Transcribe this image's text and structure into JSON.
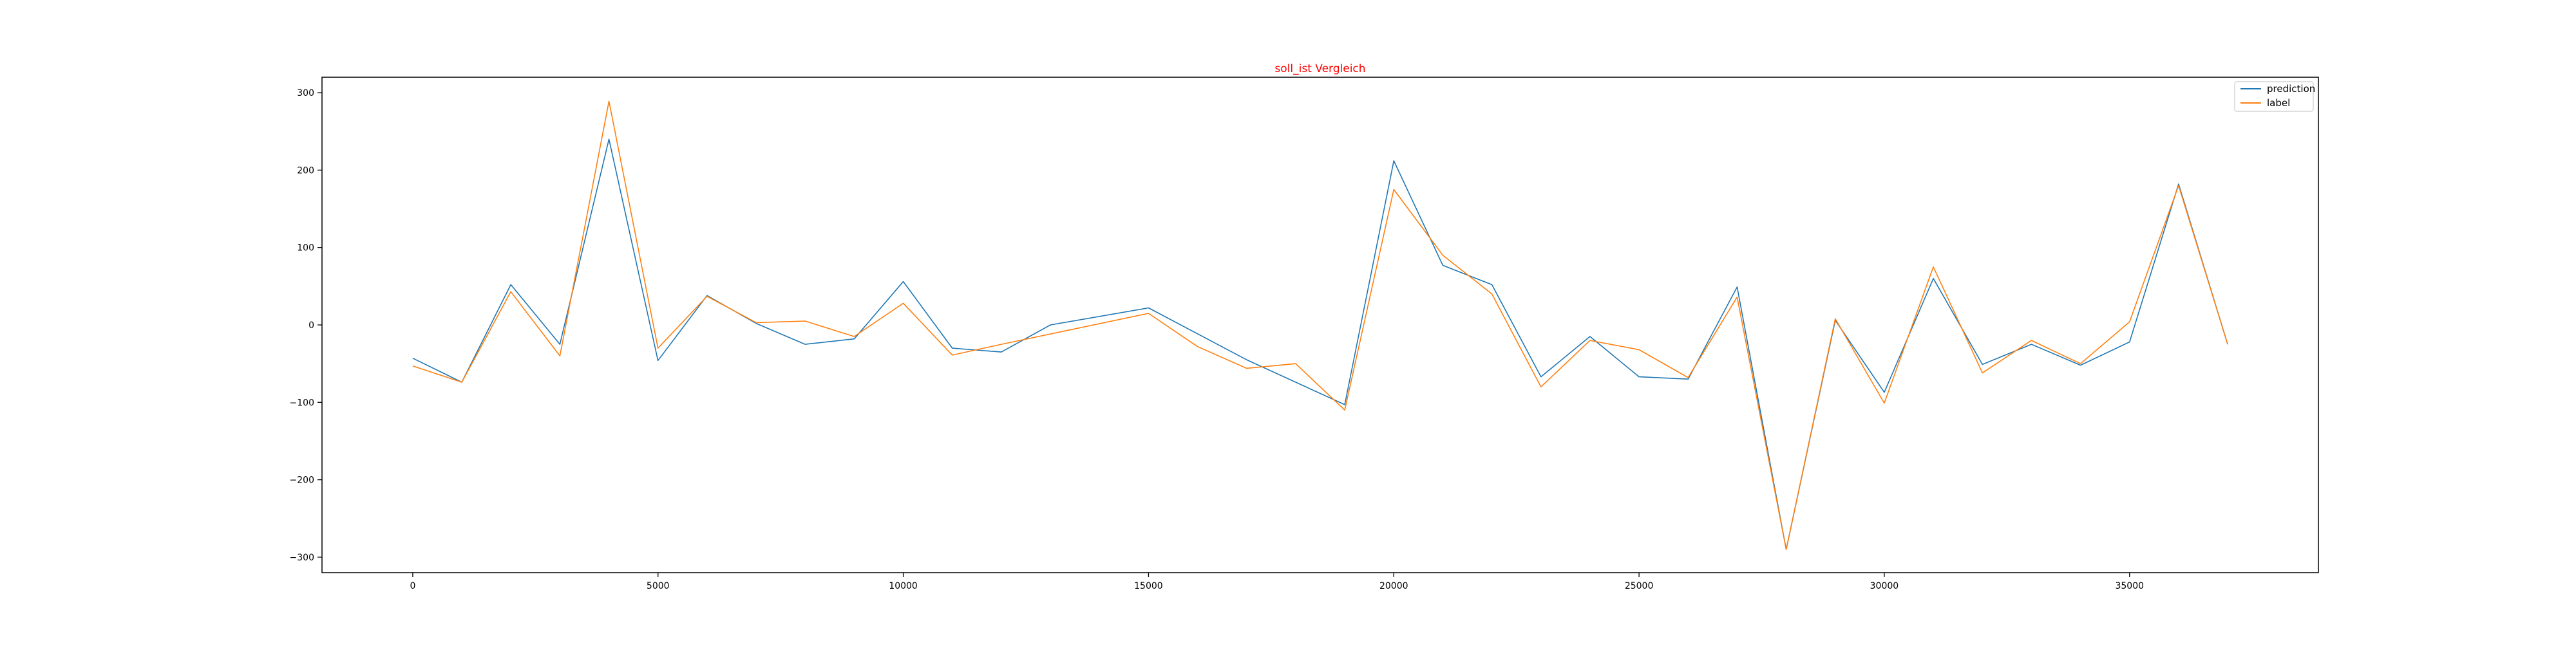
{
  "chart_data": {
    "type": "line",
    "title": "soll_ist Vergleich",
    "title_color": "#ff0000",
    "xlabel": "",
    "ylabel": "",
    "xlim": [
      -1850,
      38850
    ],
    "ylim": [
      -320,
      320
    ],
    "x_ticks": [
      0,
      5000,
      10000,
      15000,
      20000,
      25000,
      30000,
      35000
    ],
    "y_ticks": [
      -300,
      -200,
      -100,
      0,
      100,
      200,
      300
    ],
    "grid": false,
    "legend_position": "top-right",
    "series": [
      {
        "name": "prediction",
        "color": "#1f77b4",
        "points": [
          [
            0,
            -43
          ],
          [
            1000,
            -74
          ],
          [
            2000,
            52
          ],
          [
            3000,
            -25
          ],
          [
            4000,
            240
          ],
          [
            5000,
            -46
          ],
          [
            6000,
            38
          ],
          [
            7000,
            2
          ],
          [
            8000,
            -25
          ],
          [
            9000,
            -18
          ],
          [
            10000,
            56
          ],
          [
            11000,
            -30
          ],
          [
            12000,
            -35
          ],
          [
            13000,
            0
          ],
          [
            15000,
            22
          ],
          [
            17000,
            -45
          ],
          [
            19000,
            -103
          ],
          [
            20000,
            212
          ],
          [
            21000,
            77
          ],
          [
            22000,
            52
          ],
          [
            23000,
            -67
          ],
          [
            24000,
            -15
          ],
          [
            25000,
            -67
          ],
          [
            26000,
            -70
          ],
          [
            27000,
            49
          ],
          [
            28000,
            -290
          ],
          [
            29000,
            6
          ],
          [
            30000,
            -87
          ],
          [
            31000,
            60
          ],
          [
            32000,
            -51
          ],
          [
            33000,
            -25
          ],
          [
            34000,
            -52
          ],
          [
            35000,
            -22
          ],
          [
            36000,
            182
          ],
          [
            37000,
            -25
          ]
        ]
      },
      {
        "name": "label",
        "color": "#ff7f0e",
        "points": [
          [
            0,
            -53
          ],
          [
            1000,
            -74
          ],
          [
            2000,
            43
          ],
          [
            3000,
            -40
          ],
          [
            4000,
            289
          ],
          [
            5000,
            -30
          ],
          [
            6000,
            37
          ],
          [
            7000,
            3
          ],
          [
            8000,
            5
          ],
          [
            9000,
            -15
          ],
          [
            10000,
            28
          ],
          [
            11000,
            -39
          ],
          [
            12000,
            -25
          ],
          [
            15000,
            15
          ],
          [
            16000,
            -28
          ],
          [
            17000,
            -56
          ],
          [
            18000,
            -50
          ],
          [
            19000,
            -110
          ],
          [
            20000,
            175
          ],
          [
            21000,
            90
          ],
          [
            22000,
            40
          ],
          [
            23000,
            -80
          ],
          [
            24000,
            -20
          ],
          [
            25000,
            -32
          ],
          [
            26000,
            -68
          ],
          [
            27000,
            36
          ],
          [
            28000,
            -290
          ],
          [
            29000,
            8
          ],
          [
            30000,
            -101
          ],
          [
            31000,
            75
          ],
          [
            32000,
            -62
          ],
          [
            33000,
            -20
          ],
          [
            34000,
            -50
          ],
          [
            35000,
            4
          ],
          [
            36000,
            180
          ],
          [
            37000,
            -25
          ]
        ]
      }
    ]
  }
}
